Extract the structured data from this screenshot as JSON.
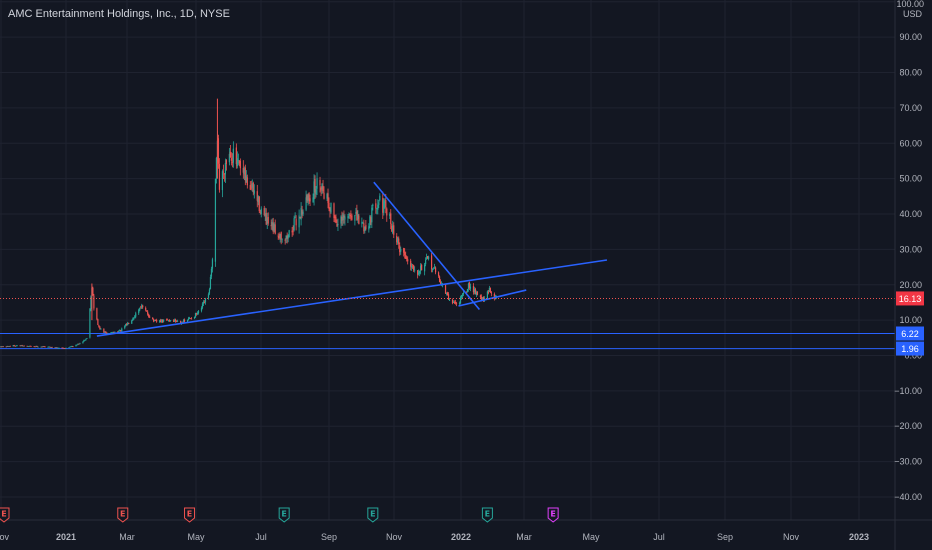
{
  "colors": {
    "background": "#131722",
    "grid": "#1f2330",
    "text": "#b2b5be",
    "up": "#26a69a",
    "down": "#ef5350",
    "trendline": "#2962ff",
    "hline": "#2962ff",
    "price_line": "#ef5350",
    "badge_price": "#f23645",
    "badge_level": "#2962ff",
    "earn_red": "#ef5350",
    "earn_green": "#26a69a",
    "earn_purple": "#e040fb"
  },
  "header": {
    "title": "AMC Entertainment Holdings, Inc., 1D, NYSE"
  },
  "chart_data": {
    "type": "candlestick",
    "title": "AMC Entertainment Holdings, Inc., 1D, NYSE",
    "y_axis": {
      "unit": "USD",
      "ylim": [
        -45,
        100
      ],
      "ticks": [
        -40,
        -30,
        -20,
        -10,
        0,
        10,
        20,
        30,
        40,
        50,
        60,
        70,
        80,
        90,
        100
      ],
      "tick_labels": [
        "−40.00",
        "−30.00",
        "−20.00",
        "−10.00",
        "0.00",
        "10.00",
        "20.00",
        "30.00",
        "40.00",
        "50.00",
        "60.00",
        "70.00",
        "80.00",
        "90.00",
        "100.00"
      ]
    },
    "x_axis": {
      "labels": [
        "Nov",
        "2021",
        "Mar",
        "May",
        "Jul",
        "Sep",
        "Nov",
        "2022",
        "Mar",
        "May",
        "Jul",
        "Sep",
        "Nov",
        "2023"
      ],
      "bold": [
        "2021",
        "2022",
        "2023"
      ]
    },
    "price_anchors": [
      [
        "2020-10-15",
        2.2
      ],
      [
        "2020-11-10",
        2.8
      ],
      [
        "2020-12-10",
        2.5
      ],
      [
        "2020-12-31",
        2.1
      ],
      [
        "2021-01-12",
        3.0
      ],
      [
        "2021-01-22",
        4.9
      ],
      [
        "2021-01-27",
        19.9
      ],
      [
        "2021-01-29",
        13.3
      ],
      [
        "2021-02-03",
        7.8
      ],
      [
        "2021-02-10",
        6.2
      ],
      [
        "2021-02-25",
        7.0
      ],
      [
        "2021-03-10",
        11.0
      ],
      [
        "2021-03-17",
        14.0
      ],
      [
        "2021-03-31",
        9.5
      ],
      [
        "2021-04-15",
        10.0
      ],
      [
        "2021-04-30",
        9.5
      ],
      [
        "2021-05-14",
        12.0
      ],
      [
        "2021-05-24",
        17.0
      ],
      [
        "2021-05-28",
        26.1
      ],
      [
        "2021-06-02",
        62.5
      ],
      [
        "2021-06-04",
        47.0
      ],
      [
        "2021-06-09",
        54.0
      ],
      [
        "2021-06-15",
        58.0
      ],
      [
        "2021-06-25",
        52.0
      ],
      [
        "2021-07-09",
        46.0
      ],
      [
        "2021-07-22",
        37.0
      ],
      [
        "2021-08-10",
        33.0
      ],
      [
        "2021-08-20",
        38.0
      ],
      [
        "2021-08-31",
        44.0
      ],
      [
        "2021-09-13",
        49.5
      ],
      [
        "2021-09-22",
        43.0
      ],
      [
        "2021-10-01",
        37.0
      ],
      [
        "2021-10-15",
        40.0
      ],
      [
        "2021-10-29",
        36.0
      ],
      [
        "2021-11-10",
        44.5
      ],
      [
        "2021-11-20",
        40.0
      ],
      [
        "2021-12-01",
        31.0
      ],
      [
        "2021-12-10",
        27.0
      ],
      [
        "2021-12-20",
        24.0
      ],
      [
        "2021-12-31",
        27.0
      ],
      [
        "2022-01-10",
        22.0
      ],
      [
        "2022-01-20",
        16.0
      ],
      [
        "2022-01-28",
        14.5
      ],
      [
        "2022-02-04",
        17.0
      ],
      [
        "2022-02-10",
        20.0
      ],
      [
        "2022-02-18",
        17.5
      ],
      [
        "2022-02-24",
        15.5
      ],
      [
        "2022-03-02",
        18.5
      ],
      [
        "2022-03-09",
        16.1
      ]
    ],
    "last_price": 16.13,
    "last_price_label": "16.13",
    "horizontal_levels": [
      {
        "value": 6.22,
        "label": "6.22"
      },
      {
        "value": 1.96,
        "label": "1.96"
      }
    ],
    "trendlines": [
      {
        "start": [
          "2021-02-01",
          5.5
        ],
        "end": [
          "2022-06-28",
          27.0
        ]
      },
      {
        "start": [
          "2021-11-06",
          49.0
        ],
        "end": [
          "2022-02-20",
          13.0
        ]
      },
      {
        "start": [
          "2022-01-30",
          14.0
        ],
        "end": [
          "2022-04-08",
          18.5
        ]
      }
    ],
    "events": [
      {
        "date": "2020-10-12",
        "label": "E",
        "kind": "red"
      },
      {
        "date": "2021-02-27",
        "label": "E",
        "kind": "red"
      },
      {
        "date": "2021-05-05",
        "label": "E",
        "kind": "red"
      },
      {
        "date": "2021-08-08",
        "label": "E",
        "kind": "green"
      },
      {
        "date": "2021-11-05",
        "label": "E",
        "kind": "green"
      },
      {
        "date": "2022-02-28",
        "label": "E",
        "kind": "green"
      },
      {
        "date": "2022-05-05",
        "label": "E",
        "kind": "purple"
      }
    ]
  }
}
